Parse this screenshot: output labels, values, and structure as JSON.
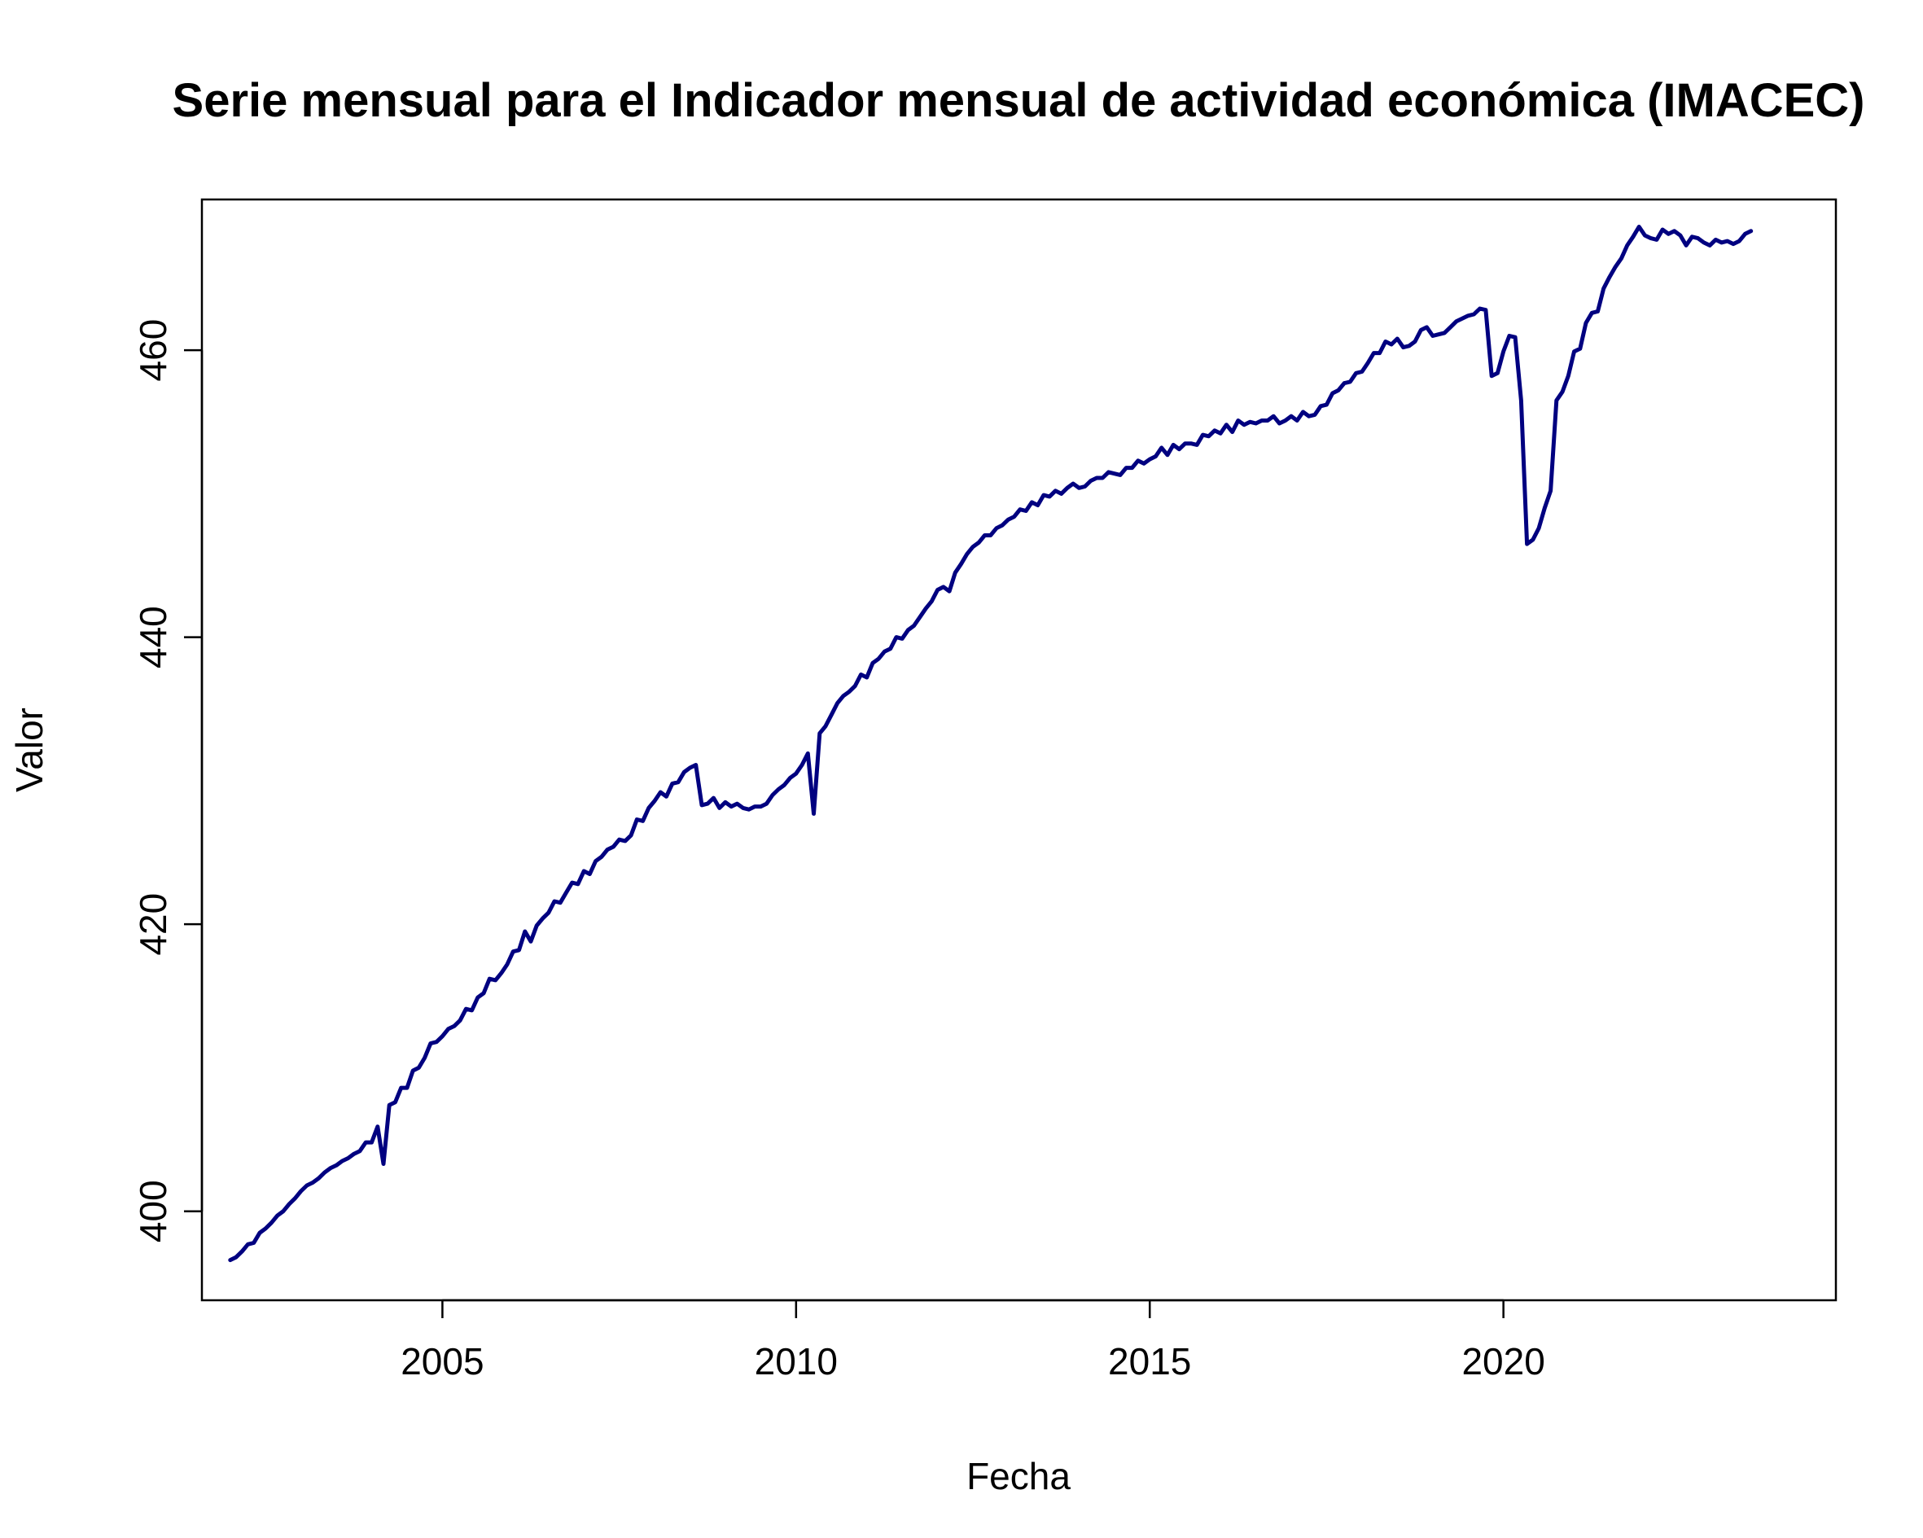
{
  "chart_data": {
    "type": "line",
    "title": "Serie mensual para el Indicador mensual de actividad económica (IMACEC)",
    "xlabel": "Fecha",
    "ylabel": "Valor",
    "xlim": [
      2001.6,
      2024.7
    ],
    "ylim": [
      393.8,
      470.5
    ],
    "x_ticks": [
      2005,
      2010,
      2015,
      2020
    ],
    "y_ticks": [
      400,
      420,
      440,
      460
    ],
    "grid": false,
    "line_color": "#000080",
    "series": [
      {
        "x_start": 2002.0,
        "x_step": 0.0833333,
        "values": [
          396.6,
          396.8,
          397.2,
          397.7,
          397.8,
          398.5,
          398.8,
          399.2,
          399.7,
          400.0,
          400.5,
          400.9,
          401.4,
          401.8,
          402.0,
          402.3,
          402.7,
          403.0,
          403.2,
          403.5,
          403.7,
          404.0,
          404.2,
          404.8,
          404.8,
          405.9,
          403.3,
          407.4,
          407.6,
          408.6,
          408.6,
          409.8,
          410.0,
          410.7,
          411.7,
          411.8,
          412.2,
          412.7,
          412.9,
          413.3,
          414.1,
          414.0,
          414.9,
          415.2,
          416.2,
          416.1,
          416.6,
          417.2,
          418.1,
          418.2,
          419.5,
          418.8,
          419.9,
          420.4,
          420.8,
          421.6,
          421.5,
          422.2,
          422.9,
          422.8,
          423.7,
          423.5,
          424.4,
          424.7,
          425.2,
          425.4,
          425.9,
          425.8,
          426.2,
          427.3,
          427.2,
          428.1,
          428.6,
          429.2,
          428.9,
          429.8,
          429.9,
          430.6,
          430.9,
          431.1,
          428.3,
          428.4,
          428.8,
          428.1,
          428.5,
          428.2,
          428.4,
          428.1,
          428.0,
          428.2,
          428.2,
          428.4,
          429.0,
          429.4,
          429.7,
          430.2,
          430.5,
          431.1,
          431.9,
          427.7,
          433.3,
          433.8,
          434.6,
          435.4,
          435.9,
          436.2,
          436.6,
          437.4,
          437.2,
          438.2,
          438.5,
          439.0,
          439.2,
          440.0,
          439.9,
          440.5,
          440.8,
          441.4,
          442.0,
          442.5,
          443.3,
          443.5,
          443.2,
          444.5,
          445.1,
          445.8,
          446.3,
          446.6,
          447.1,
          447.1,
          447.6,
          447.8,
          448.2,
          448.4,
          448.9,
          448.8,
          449.4,
          449.2,
          449.9,
          449.8,
          450.2,
          450.0,
          450.4,
          450.7,
          450.4,
          450.5,
          450.9,
          451.1,
          451.1,
          451.5,
          451.4,
          451.3,
          451.8,
          451.8,
          452.3,
          452.1,
          452.4,
          452.6,
          453.2,
          452.7,
          453.4,
          453.1,
          453.5,
          453.5,
          453.4,
          454.1,
          454.0,
          454.4,
          454.2,
          454.8,
          454.3,
          455.1,
          454.8,
          455.0,
          454.9,
          455.1,
          455.1,
          455.4,
          454.9,
          455.1,
          455.4,
          455.1,
          455.7,
          455.4,
          455.5,
          456.1,
          456.2,
          457.0,
          457.2,
          457.7,
          457.8,
          458.4,
          458.5,
          459.1,
          459.8,
          459.8,
          460.6,
          460.4,
          460.8,
          460.2,
          460.3,
          460.6,
          461.4,
          461.6,
          461.0,
          461.1,
          461.2,
          461.6,
          462.0,
          462.2,
          462.4,
          462.5,
          462.9,
          462.8,
          458.2,
          458.4,
          459.9,
          461.0,
          460.9,
          456.5,
          446.5,
          446.8,
          447.6,
          449.0,
          450.2,
          456.5,
          457.1,
          458.2,
          459.9,
          460.1,
          461.9,
          462.6,
          462.7,
          464.3,
          465.1,
          465.8,
          466.4,
          467.3,
          467.9,
          468.6,
          468.0,
          467.8,
          467.7,
          468.4,
          468.1,
          468.3,
          468.0,
          467.3,
          467.9,
          467.8,
          467.5,
          467.3,
          467.7,
          467.5,
          467.6,
          467.4,
          467.6,
          468.1,
          468.3
        ]
      }
    ]
  }
}
